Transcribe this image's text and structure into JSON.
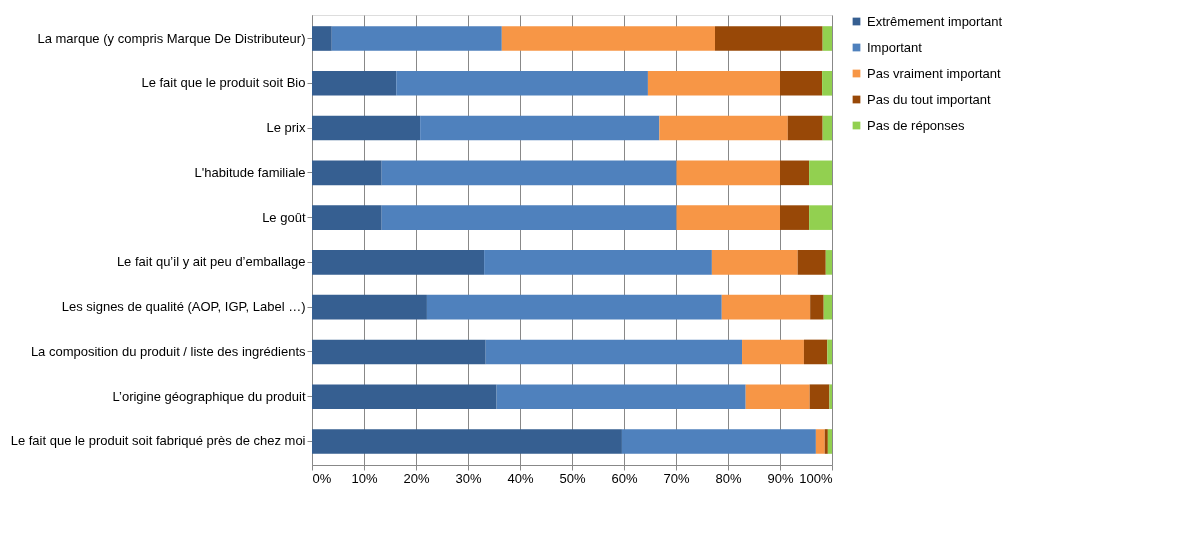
{
  "chart_data": {
    "type": "bar",
    "orientation": "horizontal",
    "stacked": true,
    "categories": [
      "La marque (y compris Marque De Distributeur)",
      "Le fait que le produit soit Bio",
      "Le prix",
      "L'habitude familiale",
      "Le goût",
      "Le fait qu’il y ait peu d’emballage",
      "Les signes de qualité (AOP, IGP, Label …)",
      "La composition du produit / liste des ingrédients",
      "L’origine géographique du produit",
      "Le fait que le produit soit fabriqué près de chez moi"
    ],
    "series": [
      {
        "name": "Extrêmement important",
        "color": "#365f91",
        "values": [
          3.8,
          16.2,
          20.8,
          13.4,
          13.4,
          33.1,
          22.1,
          33.4,
          35.5,
          59.6
        ]
      },
      {
        "name": "Important",
        "color": "#4f81bd",
        "values": [
          32.7,
          48.4,
          46.0,
          56.7,
          56.7,
          43.8,
          56.7,
          49.3,
          47.9,
          37.3
        ]
      },
      {
        "name": "Pas vraiment important",
        "color": "#f79646",
        "values": [
          41.0,
          25.4,
          24.7,
          19.9,
          19.9,
          16.5,
          17.0,
          11.9,
          12.3,
          1.7
        ]
      },
      {
        "name": "Pas du tout important",
        "color": "#984807",
        "values": [
          20.7,
          8.1,
          6.7,
          5.6,
          5.6,
          5.4,
          2.6,
          4.5,
          3.8,
          0.6
        ]
      },
      {
        "name": "Pas de réponses",
        "color": "#92d050",
        "values": [
          1.8,
          1.9,
          1.8,
          4.4,
          4.4,
          1.2,
          1.6,
          0.9,
          0.5,
          0.8
        ]
      }
    ],
    "xlim": [
      0,
      100
    ],
    "xticks": [
      {
        "value": 0,
        "label": "0%"
      },
      {
        "value": 10,
        "label": "10%"
      },
      {
        "value": 20,
        "label": "20%"
      },
      {
        "value": 30,
        "label": "30%"
      },
      {
        "value": 40,
        "label": "40%"
      },
      {
        "value": 50,
        "label": "50%"
      },
      {
        "value": 60,
        "label": "60%"
      },
      {
        "value": 70,
        "label": "70%"
      },
      {
        "value": 80,
        "label": "80%"
      },
      {
        "value": 90,
        "label": "90%"
      },
      {
        "value": 100,
        "label": "100%"
      }
    ],
    "grid": "x",
    "legend": "right"
  }
}
